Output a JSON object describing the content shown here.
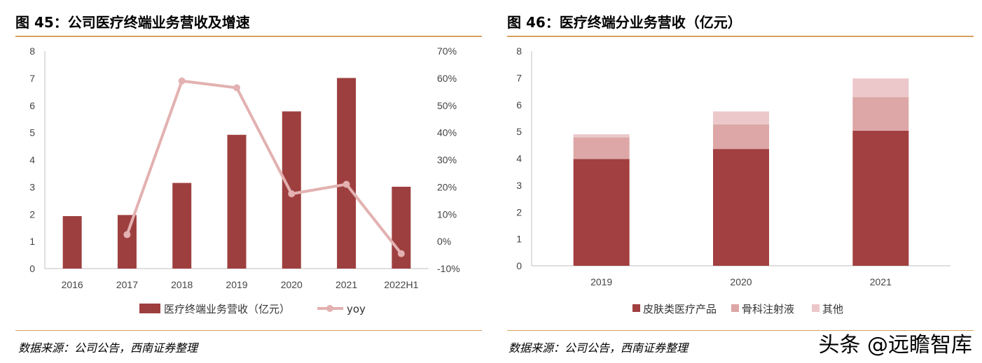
{
  "left": {
    "title": "图 45：公司医疗终端业务营收及增速",
    "source": "数据来源：公司公告，西南证券整理"
  },
  "right": {
    "title": "图 46：医疗终端分业务营收（亿元）",
    "source": "数据来源：公司公告，西南证券整理"
  },
  "watermark": "头条 @远瞻智库",
  "colors": {
    "bar": "#9e3f3f",
    "line": "#e3b1b1",
    "s1": "#a23f40",
    "s2": "#dca7a6",
    "s3": "#ecc8ca",
    "rule": "#d9a15f"
  },
  "chart_data": [
    {
      "type": "bar",
      "categories": [
        "2016",
        "2017",
        "2018",
        "2019",
        "2020",
        "2021",
        "2022H1"
      ],
      "series": [
        {
          "name": "医疗终端业务营收（亿元）",
          "type": "bar",
          "axis": "left",
          "values": [
            1.93,
            1.97,
            3.15,
            4.92,
            5.78,
            7.01,
            3.01
          ]
        },
        {
          "name": "yoy",
          "type": "line",
          "axis": "right",
          "values": [
            null,
            2.5,
            59.0,
            56.5,
            17.5,
            21.0,
            -4.5
          ]
        }
      ],
      "ylim": [
        0,
        8
      ],
      "yticks": [
        "0",
        "1",
        "2",
        "3",
        "4",
        "5",
        "6",
        "7",
        "8"
      ],
      "y2lim": [
        -10,
        70
      ],
      "y2ticks": [
        "-10%",
        "0%",
        "10%",
        "20%",
        "30%",
        "40%",
        "50%",
        "60%",
        "70%"
      ],
      "legend": "bottom"
    },
    {
      "type": "bar",
      "stacked": true,
      "categories": [
        "2019",
        "2020",
        "2021"
      ],
      "series": [
        {
          "name": "皮肤类医疗产品",
          "values": [
            3.98,
            4.35,
            5.03
          ]
        },
        {
          "name": "骨科注射液",
          "values": [
            0.8,
            0.92,
            1.25
          ]
        },
        {
          "name": "其他",
          "values": [
            0.12,
            0.48,
            0.7
          ]
        }
      ],
      "ylim": [
        0,
        8
      ],
      "yticks": [
        "0",
        "1",
        "2",
        "3",
        "4",
        "5",
        "6",
        "7",
        "8"
      ],
      "legend": "bottom"
    }
  ]
}
